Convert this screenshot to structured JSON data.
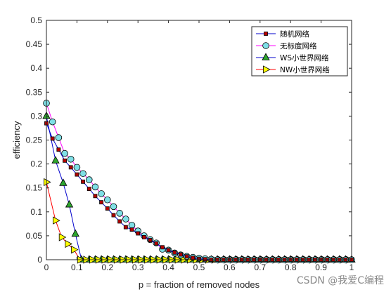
{
  "chart_data": {
    "type": "line",
    "xlabel": "p = fraction of removed nodes",
    "ylabel": "efficiency",
    "xlim": [
      0,
      1
    ],
    "ylim": [
      0,
      0.5
    ],
    "x_ticks": [
      "0",
      "0.1",
      "0.2",
      "0.3",
      "0.4",
      "0.5",
      "0.6",
      "0.7",
      "0.8",
      "0.9",
      "1"
    ],
    "y_ticks": [
      "0",
      "0.05",
      "0.1",
      "0.15",
      "0.2",
      "0.25",
      "0.3",
      "0.35",
      "0.4",
      "0.45",
      "0.5"
    ],
    "x_tick_values": [
      0,
      0.1,
      0.2,
      0.3,
      0.4,
      0.5,
      0.6,
      0.7,
      0.8,
      0.9,
      1
    ],
    "y_tick_values": [
      0,
      0.05,
      0.1,
      0.15,
      0.2,
      0.25,
      0.3,
      0.35,
      0.4,
      0.45,
      0.5
    ],
    "grid": false,
    "legend_position": "top-right",
    "series": [
      {
        "name": "随机网络",
        "line_color": "#0000cc",
        "marker": "square",
        "marker_color": "#b50000",
        "x": [
          0,
          0.02,
          0.04,
          0.06,
          0.08,
          0.1,
          0.12,
          0.14,
          0.16,
          0.18,
          0.2,
          0.22,
          0.24,
          0.26,
          0.28,
          0.3,
          0.32,
          0.34,
          0.36,
          0.38,
          0.4,
          0.42,
          0.44,
          0.46,
          0.48,
          0.5,
          0.52,
          0.54,
          0.56,
          0.58,
          0.6,
          0.62,
          0.64,
          0.66,
          0.68,
          0.7,
          0.72,
          0.74,
          0.76,
          0.78,
          0.8,
          0.82,
          0.84,
          0.86,
          0.88,
          0.9,
          0.92,
          0.94,
          0.96,
          0.98,
          1.0
        ],
        "y": [
          0.285,
          0.253,
          0.23,
          0.207,
          0.193,
          0.178,
          0.163,
          0.148,
          0.133,
          0.12,
          0.107,
          0.093,
          0.08,
          0.068,
          0.063,
          0.055,
          0.047,
          0.041,
          0.034,
          0.026,
          0.02,
          0.015,
          0.011,
          0.007,
          0.004,
          0.002,
          0.001,
          0,
          0,
          0,
          0,
          0,
          0,
          0,
          0,
          0,
          0,
          0,
          0,
          0,
          0,
          0,
          0,
          0,
          0,
          0,
          0,
          0,
          0,
          0,
          0
        ]
      },
      {
        "name": "无标度网络",
        "line_color": "#ff00ff",
        "marker": "circle",
        "marker_color": "#7fdfe6",
        "x": [
          0,
          0.02,
          0.04,
          0.06,
          0.08,
          0.1,
          0.12,
          0.14,
          0.16,
          0.18,
          0.2,
          0.22,
          0.24,
          0.26,
          0.28,
          0.3,
          0.32,
          0.34,
          0.36,
          0.38,
          0.4,
          0.42,
          0.44,
          0.46,
          0.48,
          0.5,
          0.52,
          0.54,
          0.56,
          0.58,
          0.6,
          0.62,
          0.64,
          0.66,
          0.68,
          0.7,
          0.72,
          0.74,
          0.76,
          0.78,
          0.8,
          0.82,
          0.84,
          0.86,
          0.88,
          0.9,
          0.92,
          0.94,
          0.96,
          0.98,
          1.0
        ],
        "y": [
          0.327,
          0.288,
          0.255,
          0.222,
          0.21,
          0.193,
          0.18,
          0.167,
          0.152,
          0.138,
          0.125,
          0.111,
          0.097,
          0.085,
          0.072,
          0.06,
          0.05,
          0.042,
          0.035,
          0.022,
          0.02,
          0.014,
          0.01,
          0.007,
          0.005,
          0.003,
          0.002,
          0.001,
          0,
          0,
          0,
          0,
          0,
          0,
          0,
          0,
          0,
          0,
          0,
          0,
          0,
          0,
          0,
          0,
          0,
          0,
          0,
          0,
          0,
          0,
          0
        ]
      },
      {
        "name": "WS小世界网络",
        "line_color": "#0000cc",
        "marker": "triangle-up",
        "marker_color": "#2ea52e",
        "x": [
          0,
          0.03,
          0.055,
          0.075,
          0.095,
          0.115,
          0.14,
          0.16,
          0.18,
          0.2,
          0.22,
          0.24,
          0.26,
          0.28,
          0.3,
          0.32,
          0.34,
          0.36,
          0.38,
          0.4,
          0.42,
          0.44,
          0.46,
          0.48,
          0.5,
          0.52,
          0.54,
          0.56,
          0.58,
          0.6,
          0.62,
          0.64,
          0.66,
          0.68,
          0.7,
          0.72,
          0.74,
          0.76,
          0.78,
          0.8,
          0.82,
          0.84,
          0.86,
          0.88,
          0.9,
          0.92,
          0.94,
          0.96,
          0.98,
          1.0
        ],
        "y": [
          0.3,
          0.207,
          0.16,
          0.115,
          0.054,
          0,
          0,
          0,
          0,
          0,
          0,
          0,
          0,
          0,
          0,
          0,
          0,
          0,
          0,
          0,
          0,
          0,
          0,
          0,
          0,
          0,
          0,
          0,
          0,
          0,
          0,
          0,
          0,
          0,
          0,
          0,
          0,
          0,
          0,
          0,
          0,
          0,
          0,
          0,
          0,
          0,
          0,
          0,
          0,
          0
        ]
      },
      {
        "name": "NW小世界网络",
        "line_color": "#ff0000",
        "marker": "triangle-right",
        "marker_color": "#ffff00",
        "x": [
          0,
          0.03,
          0.05,
          0.07,
          0.09,
          0.11,
          0.13,
          0.15,
          0.17,
          0.19,
          0.21,
          0.23,
          0.25,
          0.27,
          0.29,
          0.31,
          0.33,
          0.35,
          0.37,
          0.39,
          0.41,
          0.43,
          0.45,
          0.47,
          0.49,
          0.51,
          0.53,
          0.55,
          0.57,
          0.59,
          0.61,
          0.63,
          0.65,
          0.67,
          0.69,
          0.71,
          0.73,
          0.75,
          0.77,
          0.79,
          0.81,
          0.83,
          0.85,
          0.87,
          0.89,
          0.91,
          0.93,
          0.95,
          0.97,
          0.99
        ],
        "y": [
          0.162,
          0.082,
          0.047,
          0.033,
          0.021,
          0,
          0,
          0,
          0,
          0,
          0,
          0,
          0,
          0,
          0,
          0,
          0,
          0,
          0,
          0,
          0,
          0,
          0,
          0,
          0,
          0,
          0,
          0,
          0,
          0,
          0,
          0,
          0,
          0,
          0,
          0,
          0,
          0,
          0,
          0,
          0,
          0,
          0,
          0,
          0,
          0,
          0,
          0,
          0,
          0
        ]
      }
    ]
  },
  "watermark": "CSDN @我爱C编程"
}
